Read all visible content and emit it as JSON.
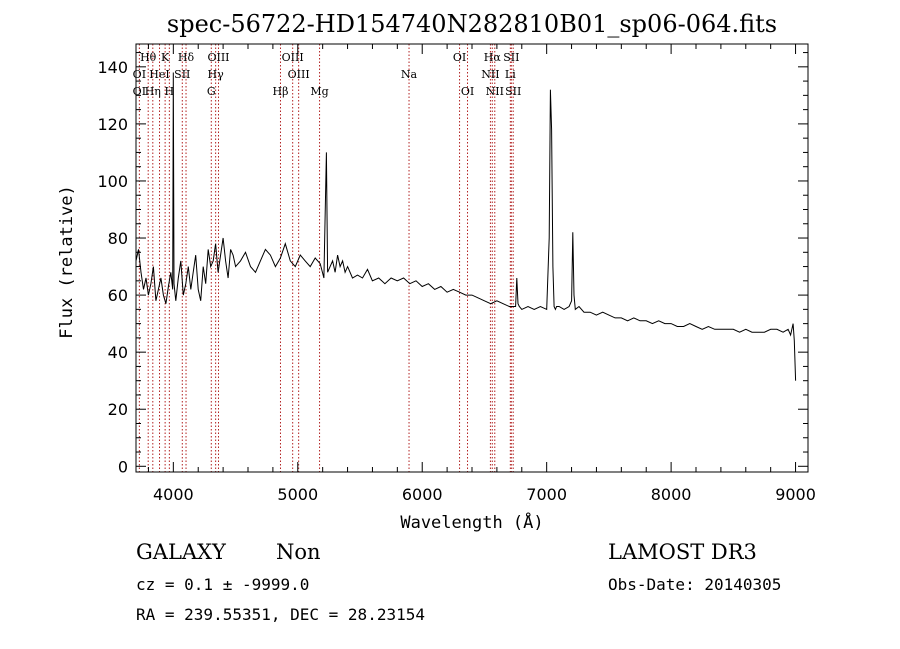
{
  "chart_data": {
    "type": "line",
    "title": "spec-56722-HD154740N282810B01_sp06-064.fits",
    "xlabel": "Wavelength (Å)",
    "ylabel": "Flux (relative)",
    "xlim": [
      3700,
      9100
    ],
    "ylim": [
      -2,
      148
    ],
    "x_ticks": [
      4000,
      5000,
      6000,
      7000,
      8000,
      9000
    ],
    "y_ticks": [
      0,
      20,
      40,
      60,
      80,
      100,
      120,
      140
    ],
    "series": [
      {
        "x": [
          3700,
          3720,
          3740,
          3760,
          3780,
          3800,
          3820,
          3840,
          3860,
          3880,
          3900,
          3920,
          3940,
          3960,
          3980,
          3995,
          4000,
          4005,
          4020,
          4040,
          4060,
          4080,
          4100,
          4120,
          4140,
          4160,
          4180,
          4200,
          4220,
          4240,
          4260,
          4280,
          4300,
          4320,
          4340,
          4360,
          4380,
          4400,
          4420,
          4440,
          4460,
          4480,
          4500,
          4540,
          4580,
          4620,
          4660,
          4700,
          4740,
          4780,
          4820,
          4860,
          4900,
          4940,
          4980,
          5020,
          5060,
          5100,
          5140,
          5180,
          5210,
          5230,
          5240,
          5260,
          5280,
          5300,
          5320,
          5340,
          5360,
          5380,
          5400,
          5440,
          5480,
          5520,
          5560,
          5600,
          5650,
          5700,
          5750,
          5800,
          5850,
          5900,
          5950,
          6000,
          6050,
          6100,
          6150,
          6200,
          6250,
          6300,
          6350,
          6400,
          6450,
          6500,
          6550,
          6600,
          6650,
          6700,
          6750,
          6760,
          6770,
          6780,
          6800,
          6850,
          6900,
          6950,
          7000,
          7020,
          7030,
          7040,
          7050,
          7060,
          7070,
          7080,
          7100,
          7140,
          7180,
          7200,
          7210,
          7220,
          7230,
          7260,
          7300,
          7350,
          7400,
          7450,
          7500,
          7550,
          7600,
          7650,
          7700,
          7750,
          7800,
          7850,
          7900,
          7950,
          8000,
          8050,
          8100,
          8150,
          8200,
          8250,
          8300,
          8350,
          8400,
          8450,
          8500,
          8550,
          8600,
          8650,
          8700,
          8750,
          8800,
          8850,
          8900,
          8940,
          8960,
          8980,
          8990,
          9000
        ],
        "y": [
          72,
          76,
          68,
          62,
          66,
          60,
          64,
          70,
          58,
          62,
          66,
          60,
          57,
          63,
          68,
          62,
          138,
          64,
          58,
          66,
          72,
          60,
          64,
          70,
          62,
          68,
          74,
          62,
          58,
          70,
          64,
          76,
          70,
          72,
          78,
          68,
          74,
          80,
          72,
          66,
          76,
          74,
          70,
          72,
          75,
          70,
          68,
          72,
          76,
          74,
          70,
          73,
          78,
          72,
          70,
          74,
          72,
          70,
          73,
          71,
          66,
          110,
          68,
          70,
          72,
          68,
          74,
          70,
          72,
          68,
          70,
          66,
          67,
          66,
          69,
          65,
          66,
          64,
          66,
          65,
          66,
          64,
          65,
          63,
          64,
          62,
          63,
          61,
          62,
          61,
          60,
          60,
          59,
          58,
          57,
          58,
          57,
          56,
          56,
          66,
          57,
          56,
          55,
          56,
          55,
          56,
          55,
          80,
          132,
          118,
          70,
          56,
          55,
          56,
          56,
          55,
          56,
          58,
          82,
          60,
          55,
          56,
          54,
          54,
          53,
          54,
          53,
          52,
          52,
          51,
          52,
          51,
          51,
          50,
          51,
          50,
          50,
          49,
          49,
          50,
          49,
          48,
          49,
          48,
          48,
          48,
          48,
          47,
          48,
          47,
          47,
          47,
          48,
          48,
          47,
          48,
          46,
          50,
          44,
          30
        ],
        "color": "#000000"
      }
    ],
    "line_color": "#b22222",
    "spectral_lines": [
      {
        "label": "OⅠ",
        "x": 3727,
        "row": 1
      },
      {
        "label": "OⅠ",
        "x": 3727,
        "row": 2
      },
      {
        "label": "Hθ",
        "x": 3798,
        "row": 0
      },
      {
        "label": "Hη",
        "x": 3835,
        "row": 2
      },
      {
        "label": "HeI",
        "x": 3889,
        "row": 1
      },
      {
        "label": "K",
        "x": 3934,
        "row": 0
      },
      {
        "label": "H",
        "x": 3968,
        "row": 2
      },
      {
        "label": "Hδ",
        "x": 4102,
        "row": 0
      },
      {
        "label": "SII",
        "x": 4072,
        "row": 1
      },
      {
        "label": "OIII",
        "x": 4363,
        "row": 0
      },
      {
        "label": "Hγ",
        "x": 4340,
        "row": 1
      },
      {
        "label": "G",
        "x": 4305,
        "row": 2
      },
      {
        "label": "Hβ",
        "x": 4861,
        "row": 2
      },
      {
        "label": "OIII",
        "x": 4959,
        "row": 0
      },
      {
        "label": "OIII",
        "x": 5007,
        "row": 1
      },
      {
        "label": "Mg",
        "x": 5175,
        "row": 2
      },
      {
        "label": "Na",
        "x": 5894,
        "row": 1
      },
      {
        "label": "OI",
        "x": 6300,
        "row": 0
      },
      {
        "label": "OI",
        "x": 6364,
        "row": 2
      },
      {
        "label": "Hα",
        "x": 6563,
        "row": 0
      },
      {
        "label": "NII",
        "x": 6548,
        "row": 1
      },
      {
        "label": "NII",
        "x": 6583,
        "row": 2
      },
      {
        "label": "SII",
        "x": 6716,
        "row": 0
      },
      {
        "label": "Li",
        "x": 6708,
        "row": 1
      },
      {
        "label": "SII",
        "x": 6731,
        "row": 2
      }
    ],
    "grid": false,
    "legend": "none"
  },
  "info": {
    "class": "GALAXY",
    "subclass": "Non",
    "survey": "LAMOST DR3",
    "cz": "cz = 0.1 ± -9999.0",
    "obs_date": "Obs-Date: 20140305",
    "coords": "RA = 239.55351, DEC =  28.23154"
  }
}
